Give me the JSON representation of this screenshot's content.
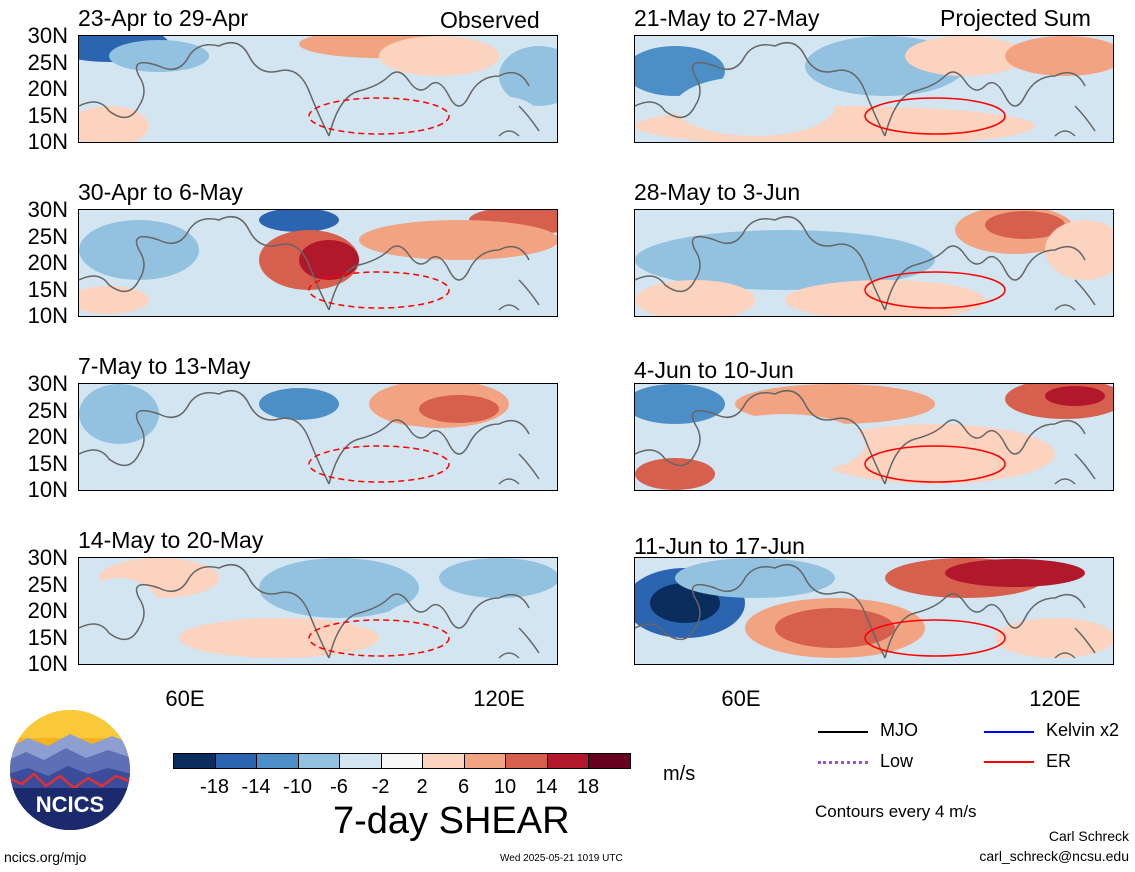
{
  "panels": [
    {
      "id": "p1",
      "title": "23-Apr to 29-Apr",
      "tag": "Observed"
    },
    {
      "id": "p2",
      "title": "30-Apr to 6-May",
      "tag": ""
    },
    {
      "id": "p3",
      "title": "7-May to 13-May",
      "tag": ""
    },
    {
      "id": "p4",
      "title": "14-May to 20-May",
      "tag": ""
    },
    {
      "id": "p5",
      "title": "21-May to 27-May",
      "tag": "Projected Sum"
    },
    {
      "id": "p6",
      "title": "28-May to 3-Jun",
      "tag": ""
    },
    {
      "id": "p7",
      "title": "4-Jun to 10-Jun",
      "tag": ""
    },
    {
      "id": "p8",
      "title": "11-Jun to 17-Jun",
      "tag": ""
    }
  ],
  "lat_labels": [
    "30N",
    "25N",
    "20N",
    "15N",
    "10N"
  ],
  "lon_labels": [
    "60E",
    "120E"
  ],
  "colorbar": {
    "labels": [
      "-18",
      "-14",
      "-10",
      "-6",
      "-2",
      "2",
      "6",
      "10",
      "14",
      "18"
    ],
    "colors": [
      "#0b2d5e",
      "#2b64b0",
      "#4c8fc7",
      "#93c2e0",
      "#d2e5f1",
      "#f7f7f7",
      "#fbd3bf",
      "#f2a482",
      "#d6604d",
      "#b2182b",
      "#67001f"
    ],
    "units": "m/s",
    "title": "7-day SHEAR"
  },
  "legend": {
    "mjo": "MJO",
    "kelvin": "Kelvin x2",
    "low": "Low",
    "er": "ER",
    "colors": {
      "mjo": "#000000",
      "kelvin": "#0000ff",
      "low": "#a050c8",
      "er": "#ff0000"
    },
    "contours_note": "Contours every 4 m/s"
  },
  "credit": {
    "author": "Carl Schreck",
    "email": "carl_schreck@ncsu.edu",
    "site": "ncics.org/mjo",
    "timestamp": "Wed 2025-05-21 1019 UTC",
    "logo_text": "NCICS"
  }
}
